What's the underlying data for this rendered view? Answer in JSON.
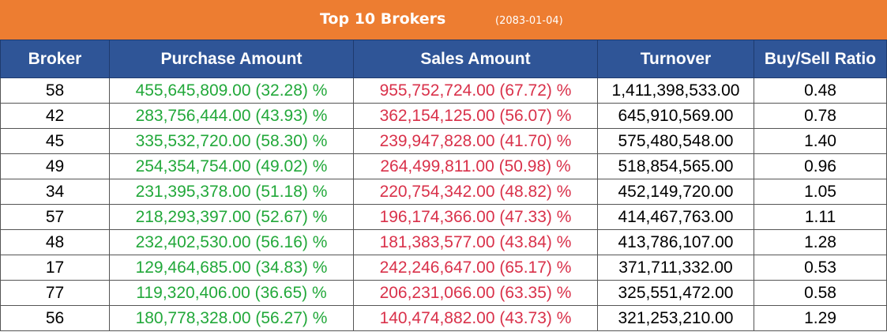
{
  "header": {
    "title": "Top 10 Brokers",
    "date": "(2083-01-04)"
  },
  "colors": {
    "banner": "#ed7d31",
    "header_row": "#2f5597",
    "purchase_text": "#22a83a",
    "sales_text": "#d9314a"
  },
  "table": {
    "columns": [
      "Broker",
      "Purchase Amount",
      "Sales Amount",
      "Turnover",
      "Buy/Sell Ratio"
    ],
    "rows": [
      {
        "broker": "58",
        "purchase": "455,645,809.00 (32.28) %",
        "sales": "955,752,724.00 (67.72) %",
        "turnover": "1,411,398,533.00",
        "ratio": "0.48"
      },
      {
        "broker": "42",
        "purchase": "283,756,444.00 (43.93) %",
        "sales": "362,154,125.00 (56.07) %",
        "turnover": "645,910,569.00",
        "ratio": "0.78"
      },
      {
        "broker": "45",
        "purchase": "335,532,720.00 (58.30) %",
        "sales": "239,947,828.00 (41.70) %",
        "turnover": "575,480,548.00",
        "ratio": "1.40"
      },
      {
        "broker": "49",
        "purchase": "254,354,754.00 (49.02) %",
        "sales": "264,499,811.00 (50.98) %",
        "turnover": "518,854,565.00",
        "ratio": "0.96"
      },
      {
        "broker": "34",
        "purchase": "231,395,378.00 (51.18) %",
        "sales": "220,754,342.00 (48.82) %",
        "turnover": "452,149,720.00",
        "ratio": "1.05"
      },
      {
        "broker": "57",
        "purchase": "218,293,397.00 (52.67) %",
        "sales": "196,174,366.00 (47.33) %",
        "turnover": "414,467,763.00",
        "ratio": "1.11"
      },
      {
        "broker": "48",
        "purchase": "232,402,530.00 (56.16) %",
        "sales": "181,383,577.00 (43.84) %",
        "turnover": "413,786,107.00",
        "ratio": "1.28"
      },
      {
        "broker": "17",
        "purchase": "129,464,685.00 (34.83) %",
        "sales": "242,246,647.00 (65.17) %",
        "turnover": "371,711,332.00",
        "ratio": "0.53"
      },
      {
        "broker": "77",
        "purchase": "119,320,406.00 (36.65) %",
        "sales": "206,231,066.00 (63.35) %",
        "turnover": "325,551,472.00",
        "ratio": "0.58"
      },
      {
        "broker": "56",
        "purchase": "180,778,328.00 (56.27) %",
        "sales": "140,474,882.00 (43.73) %",
        "turnover": "321,253,210.00",
        "ratio": "1.29"
      }
    ]
  }
}
